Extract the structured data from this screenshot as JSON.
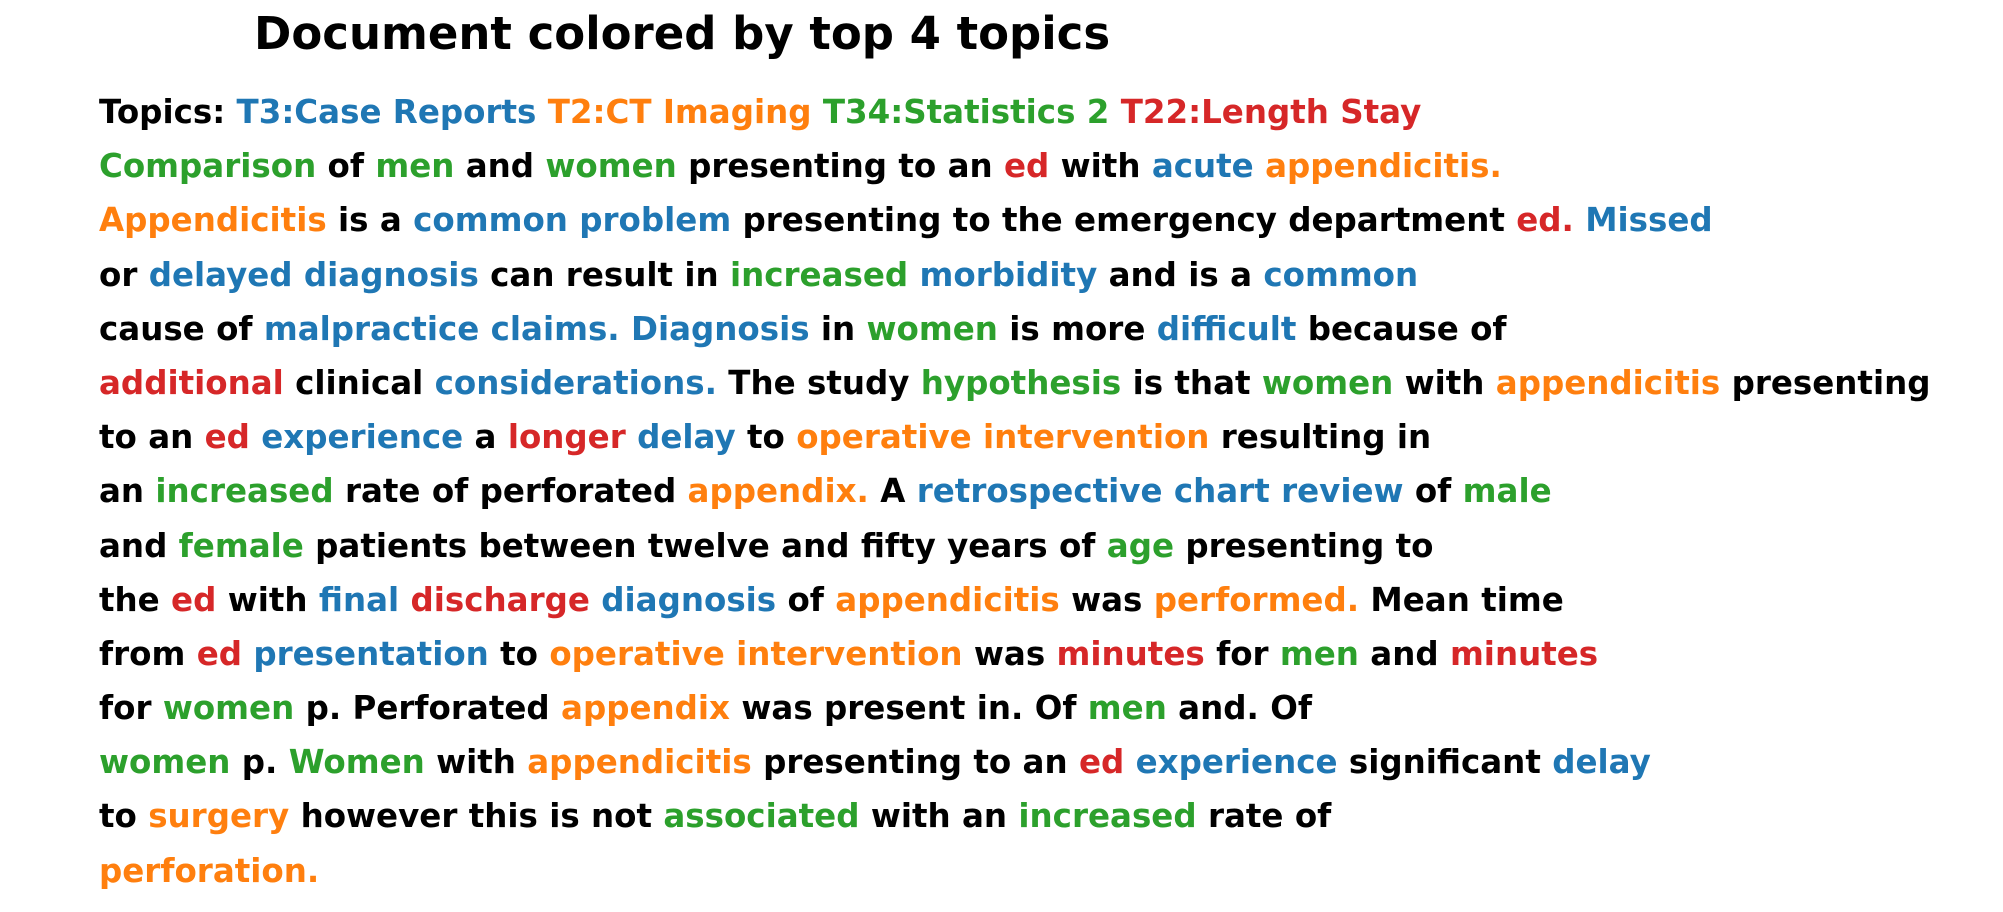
{
  "title": "Document colored by top 4 topics",
  "colors": {
    "plain": "#000000",
    "T3": "#1f77b4",
    "T2": "#ff7f0e",
    "T34": "#2ca02c",
    "T22": "#d62728"
  },
  "lines": [
    [
      [
        "Topics:",
        "plain"
      ],
      [
        "T3:Case Reports",
        "T3"
      ],
      [
        "T2:CT Imaging",
        "T2"
      ],
      [
        "T34:Statistics 2",
        "T34"
      ],
      [
        "T22:Length Stay",
        "T22"
      ]
    ],
    [
      [
        "Comparison",
        "T34"
      ],
      [
        "of",
        "plain"
      ],
      [
        "men",
        "T34"
      ],
      [
        "and",
        "plain"
      ],
      [
        "women",
        "T34"
      ],
      [
        "presenting",
        "plain"
      ],
      [
        "to",
        "plain"
      ],
      [
        "an",
        "plain"
      ],
      [
        "ed",
        "T22"
      ],
      [
        "with",
        "plain"
      ],
      [
        "acute",
        "T3"
      ],
      [
        "appendicitis.",
        "T2"
      ]
    ],
    [
      [
        "Appendicitis",
        "T2"
      ],
      [
        "is",
        "plain"
      ],
      [
        "a",
        "plain"
      ],
      [
        "common",
        "T3"
      ],
      [
        "problem",
        "T3"
      ],
      [
        "presenting",
        "plain"
      ],
      [
        "to",
        "plain"
      ],
      [
        "the",
        "plain"
      ],
      [
        "emergency",
        "plain"
      ],
      [
        "department",
        "plain"
      ],
      [
        "ed.",
        "T22"
      ],
      [
        "Missed",
        "T3"
      ]
    ],
    [
      [
        "or",
        "plain"
      ],
      [
        "delayed",
        "T3"
      ],
      [
        "diagnosis",
        "T3"
      ],
      [
        "can",
        "plain"
      ],
      [
        "result",
        "plain"
      ],
      [
        "in",
        "plain"
      ],
      [
        "increased",
        "T34"
      ],
      [
        "morbidity",
        "T3"
      ],
      [
        "and",
        "plain"
      ],
      [
        "is",
        "plain"
      ],
      [
        "a",
        "plain"
      ],
      [
        "common",
        "T3"
      ]
    ],
    [
      [
        "cause",
        "plain"
      ],
      [
        "of",
        "plain"
      ],
      [
        "malpractice",
        "T3"
      ],
      [
        "claims.",
        "T3"
      ],
      [
        "Diagnosis",
        "T3"
      ],
      [
        "in",
        "plain"
      ],
      [
        "women",
        "T34"
      ],
      [
        "is",
        "plain"
      ],
      [
        "more",
        "plain"
      ],
      [
        "difficult",
        "T3"
      ],
      [
        "because",
        "plain"
      ],
      [
        "of",
        "plain"
      ]
    ],
    [
      [
        "additional",
        "T22"
      ],
      [
        "clinical",
        "plain"
      ],
      [
        "considerations.",
        "T3"
      ],
      [
        "The",
        "plain"
      ],
      [
        "study",
        "plain"
      ],
      [
        "hypothesis",
        "T34"
      ],
      [
        "is",
        "plain"
      ],
      [
        "that",
        "plain"
      ],
      [
        "women",
        "T34"
      ],
      [
        "with",
        "plain"
      ],
      [
        "appendicitis",
        "T2"
      ],
      [
        "presenting",
        "plain"
      ]
    ],
    [
      [
        "to",
        "plain"
      ],
      [
        "an",
        "plain"
      ],
      [
        "ed",
        "T22"
      ],
      [
        "experience",
        "T3"
      ],
      [
        "a",
        "plain"
      ],
      [
        "longer",
        "T22"
      ],
      [
        "delay",
        "T3"
      ],
      [
        "to",
        "plain"
      ],
      [
        "operative",
        "T2"
      ],
      [
        "intervention",
        "T2"
      ],
      [
        "resulting",
        "plain"
      ],
      [
        "in",
        "plain"
      ]
    ],
    [
      [
        "an",
        "plain"
      ],
      [
        "increased",
        "T34"
      ],
      [
        "rate",
        "plain"
      ],
      [
        "of",
        "plain"
      ],
      [
        "perforated",
        "plain"
      ],
      [
        "appendix.",
        "T2"
      ],
      [
        "A",
        "plain"
      ],
      [
        "retrospective",
        "T3"
      ],
      [
        "chart",
        "T3"
      ],
      [
        "review",
        "T3"
      ],
      [
        "of",
        "plain"
      ],
      [
        "male",
        "T34"
      ]
    ],
    [
      [
        "and",
        "plain"
      ],
      [
        "female",
        "T34"
      ],
      [
        "patients",
        "plain"
      ],
      [
        "between",
        "plain"
      ],
      [
        "twelve",
        "plain"
      ],
      [
        "and",
        "plain"
      ],
      [
        "fifty",
        "plain"
      ],
      [
        "years",
        "plain"
      ],
      [
        "of",
        "plain"
      ],
      [
        "age",
        "T34"
      ],
      [
        "presenting",
        "plain"
      ],
      [
        "to",
        "plain"
      ]
    ],
    [
      [
        "the",
        "plain"
      ],
      [
        "ed",
        "T22"
      ],
      [
        "with",
        "plain"
      ],
      [
        "final",
        "T3"
      ],
      [
        "discharge",
        "T22"
      ],
      [
        "diagnosis",
        "T3"
      ],
      [
        "of",
        "plain"
      ],
      [
        "appendicitis",
        "T2"
      ],
      [
        "was",
        "plain"
      ],
      [
        "performed.",
        "T2"
      ],
      [
        "Mean",
        "plain"
      ],
      [
        "time",
        "plain"
      ]
    ],
    [
      [
        "from",
        "plain"
      ],
      [
        "ed",
        "T22"
      ],
      [
        "presentation",
        "T3"
      ],
      [
        "to",
        "plain"
      ],
      [
        "operative",
        "T2"
      ],
      [
        "intervention",
        "T2"
      ],
      [
        "was",
        "plain"
      ],
      [
        "minutes",
        "T22"
      ],
      [
        "for",
        "plain"
      ],
      [
        "men",
        "T34"
      ],
      [
        "and",
        "plain"
      ],
      [
        "minutes",
        "T22"
      ]
    ],
    [
      [
        "for",
        "plain"
      ],
      [
        "women",
        "T34"
      ],
      [
        "p.",
        "plain"
      ],
      [
        "Perforated",
        "plain"
      ],
      [
        "appendix",
        "T2"
      ],
      [
        "was",
        "plain"
      ],
      [
        "present",
        "plain"
      ],
      [
        "in.",
        "plain"
      ],
      [
        "Of",
        "plain"
      ],
      [
        "men",
        "T34"
      ],
      [
        "and.",
        "plain"
      ],
      [
        "Of",
        "plain"
      ]
    ],
    [
      [
        "women",
        "T34"
      ],
      [
        "p.",
        "plain"
      ],
      [
        "Women",
        "T34"
      ],
      [
        "with",
        "plain"
      ],
      [
        "appendicitis",
        "T2"
      ],
      [
        "presenting",
        "plain"
      ],
      [
        "to",
        "plain"
      ],
      [
        "an",
        "plain"
      ],
      [
        "ed",
        "T22"
      ],
      [
        "experience",
        "T3"
      ],
      [
        "significant",
        "plain"
      ],
      [
        "delay",
        "T3"
      ]
    ],
    [
      [
        "to",
        "plain"
      ],
      [
        "surgery",
        "T2"
      ],
      [
        "however",
        "plain"
      ],
      [
        "this",
        "plain"
      ],
      [
        "is",
        "plain"
      ],
      [
        "not",
        "plain"
      ],
      [
        "associated",
        "T34"
      ],
      [
        "with",
        "plain"
      ],
      [
        "an",
        "plain"
      ],
      [
        "increased",
        "T34"
      ],
      [
        "rate",
        "plain"
      ],
      [
        "of",
        "plain"
      ]
    ],
    [
      [
        "perforation.",
        "T2"
      ]
    ]
  ]
}
